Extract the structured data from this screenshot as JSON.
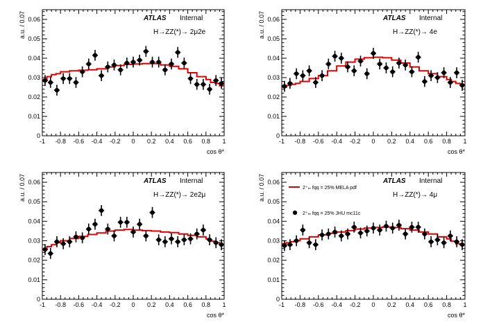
{
  "atlas_label": "ATLAS",
  "status_label": "Internal",
  "y_axis_label": "a.u. / 0.07",
  "x_axis_label": "cos θ*",
  "colors": {
    "model": "#e00000",
    "data": "#000000"
  },
  "legend": {
    "model_label": "2⁺ₘ fqq = 25% MELA pdf",
    "data_label": "2⁺ₘ fqq = 25% JHU mc11c"
  },
  "chart_data": [
    {
      "type": "scatter",
      "channel": "H→ZZ(*)→ 2μ2e",
      "xlim": [
        -1,
        1
      ],
      "ylim": [
        0,
        0.065
      ],
      "xticks": [
        "-1",
        "-0.8",
        "-0.6",
        "-0.4",
        "-0.2",
        "0",
        "0.2",
        "0.4",
        "0.6",
        "0.8",
        "1"
      ],
      "yticks": [
        "0",
        "0.01",
        "0.02",
        "0.03",
        "0.04",
        "0.05",
        "0.06"
      ],
      "points_x": [
        -0.97,
        -0.91,
        -0.84,
        -0.77,
        -0.7,
        -0.63,
        -0.56,
        -0.49,
        -0.42,
        -0.35,
        -0.28,
        -0.21,
        -0.14,
        -0.07,
        0.0,
        0.07,
        0.14,
        0.21,
        0.28,
        0.35,
        0.42,
        0.49,
        0.56,
        0.63,
        0.7,
        0.77,
        0.84,
        0.91,
        0.97
      ],
      "points_y": [
        0.0285,
        0.0275,
        0.0235,
        0.0295,
        0.0295,
        0.0275,
        0.033,
        0.037,
        0.0415,
        0.031,
        0.0355,
        0.0365,
        0.034,
        0.0375,
        0.038,
        0.039,
        0.0435,
        0.038,
        0.038,
        0.034,
        0.037,
        0.043,
        0.0375,
        0.0295,
        0.0265,
        0.0265,
        0.024,
        0.0285,
        0.027
      ],
      "errors_y": [
        0.0028,
        0.0028,
        0.0028,
        0.0028,
        0.0028,
        0.0028,
        0.0028,
        0.0028,
        0.0028,
        0.0028,
        0.0028,
        0.0028,
        0.0028,
        0.0028,
        0.0028,
        0.0028,
        0.0028,
        0.0028,
        0.0028,
        0.0028,
        0.0028,
        0.0028,
        0.0028,
        0.0028,
        0.0028,
        0.0028,
        0.0028,
        0.0028,
        0.0028
      ],
      "model_edges": [
        -1,
        -0.95,
        -0.9,
        -0.85,
        -0.8,
        -0.7,
        -0.6,
        -0.5,
        -0.4,
        -0.3,
        -0.2,
        -0.1,
        0.0,
        0.1,
        0.2,
        0.3,
        0.4,
        0.5,
        0.6,
        0.7,
        0.8,
        0.85,
        0.9,
        0.95,
        1.0
      ],
      "model_values": [
        0.029,
        0.0305,
        0.0315,
        0.032,
        0.033,
        0.0335,
        0.0338,
        0.034,
        0.0345,
        0.0355,
        0.0362,
        0.0368,
        0.037,
        0.0372,
        0.0372,
        0.0365,
        0.0358,
        0.0345,
        0.0325,
        0.0305,
        0.029,
        0.0275,
        0.027,
        0.0258
      ]
    },
    {
      "type": "scatter",
      "channel": "H→ZZ(*)→ 4e",
      "xlim": [
        -1,
        1
      ],
      "ylim": [
        0,
        0.065
      ],
      "xticks": [
        "-1",
        "-0.8",
        "-0.6",
        "-0.4",
        "-0.2",
        "0",
        "0.2",
        "0.4",
        "0.6",
        "0.8",
        "1"
      ],
      "yticks": [
        "0",
        "0.01",
        "0.02",
        "0.03",
        "0.04",
        "0.05",
        "0.06"
      ],
      "points_x": [
        -0.97,
        -0.91,
        -0.84,
        -0.77,
        -0.7,
        -0.63,
        -0.56,
        -0.49,
        -0.42,
        -0.35,
        -0.28,
        -0.21,
        -0.14,
        -0.07,
        0.0,
        0.07,
        0.14,
        0.21,
        0.28,
        0.35,
        0.42,
        0.49,
        0.56,
        0.63,
        0.7,
        0.77,
        0.84,
        0.91,
        0.97
      ],
      "points_y": [
        0.0255,
        0.027,
        0.032,
        0.031,
        0.0335,
        0.0275,
        0.031,
        0.037,
        0.041,
        0.04,
        0.0355,
        0.0335,
        0.0385,
        0.032,
        0.0425,
        0.037,
        0.035,
        0.033,
        0.0375,
        0.0365,
        0.033,
        0.0405,
        0.028,
        0.031,
        0.03,
        0.0325,
        0.0275,
        0.0325,
        0.026
      ],
      "errors_y": [
        0.0028,
        0.0028,
        0.0028,
        0.0028,
        0.0028,
        0.0028,
        0.0028,
        0.0028,
        0.0028,
        0.0028,
        0.0028,
        0.0028,
        0.0028,
        0.0028,
        0.0028,
        0.0028,
        0.0028,
        0.0028,
        0.0028,
        0.0028,
        0.0028,
        0.0028,
        0.0028,
        0.0028,
        0.0028,
        0.0028,
        0.0028,
        0.0028,
        0.0028
      ],
      "model_edges": [
        -1,
        -0.95,
        -0.9,
        -0.85,
        -0.8,
        -0.7,
        -0.6,
        -0.5,
        -0.4,
        -0.3,
        -0.2,
        -0.1,
        0.0,
        0.1,
        0.2,
        0.3,
        0.4,
        0.5,
        0.6,
        0.7,
        0.8,
        0.85,
        0.9,
        0.95,
        1.0
      ],
      "model_values": [
        0.025,
        0.026,
        0.0265,
        0.027,
        0.028,
        0.0295,
        0.031,
        0.0335,
        0.036,
        0.038,
        0.0395,
        0.0402,
        0.0405,
        0.0402,
        0.039,
        0.0375,
        0.0355,
        0.0335,
        0.032,
        0.0305,
        0.029,
        0.028,
        0.027,
        0.0265
      ]
    },
    {
      "type": "scatter",
      "channel": "H→ZZ(*)→ 2e2μ",
      "xlim": [
        -1,
        1
      ],
      "ylim": [
        0,
        0.065
      ],
      "xticks": [
        "-1",
        "-0.8",
        "-0.6",
        "-0.4",
        "-0.2",
        "0",
        "0.2",
        "0.4",
        "0.6",
        "0.8",
        "1"
      ],
      "yticks": [
        "0",
        "0.01",
        "0.02",
        "0.03",
        "0.04",
        "0.05",
        "0.06"
      ],
      "points_x": [
        -0.97,
        -0.91,
        -0.84,
        -0.77,
        -0.7,
        -0.63,
        -0.56,
        -0.49,
        -0.42,
        -0.35,
        -0.28,
        -0.21,
        -0.14,
        -0.07,
        0.0,
        0.07,
        0.14,
        0.21,
        0.28,
        0.35,
        0.42,
        0.49,
        0.56,
        0.63,
        0.7,
        0.77,
        0.84,
        0.91,
        0.97
      ],
      "points_y": [
        0.0255,
        0.0235,
        0.0295,
        0.0285,
        0.0295,
        0.032,
        0.0315,
        0.036,
        0.0385,
        0.0455,
        0.036,
        0.0325,
        0.0395,
        0.0395,
        0.0345,
        0.0385,
        0.0325,
        0.0445,
        0.0305,
        0.0295,
        0.031,
        0.0295,
        0.0305,
        0.031,
        0.0335,
        0.0355,
        0.0305,
        0.029,
        0.028
      ],
      "errors_y": [
        0.0028,
        0.0028,
        0.0028,
        0.0028,
        0.0028,
        0.0028,
        0.0028,
        0.0028,
        0.0028,
        0.0028,
        0.0028,
        0.0028,
        0.0028,
        0.0028,
        0.0028,
        0.0028,
        0.0028,
        0.0028,
        0.0028,
        0.0028,
        0.0028,
        0.0028,
        0.0028,
        0.0028,
        0.0028,
        0.0028,
        0.0028,
        0.0028,
        0.0028
      ],
      "model_edges": [
        -1,
        -0.95,
        -0.9,
        -0.85,
        -0.8,
        -0.7,
        -0.6,
        -0.5,
        -0.4,
        -0.3,
        -0.2,
        -0.1,
        0.0,
        0.1,
        0.2,
        0.3,
        0.4,
        0.5,
        0.6,
        0.7,
        0.8,
        0.85,
        0.9,
        0.95,
        1.0
      ],
      "model_values": [
        0.026,
        0.027,
        0.028,
        0.029,
        0.03,
        0.0312,
        0.0322,
        0.0332,
        0.034,
        0.035,
        0.0355,
        0.0358,
        0.0355,
        0.0352,
        0.035,
        0.0345,
        0.0342,
        0.0335,
        0.0328,
        0.032,
        0.031,
        0.0298,
        0.029,
        0.0282
      ]
    },
    {
      "type": "scatter",
      "channel": "H→ZZ(*)→ 4μ",
      "xlim": [
        -1,
        1
      ],
      "ylim": [
        0,
        0.065
      ],
      "xticks": [
        "-1",
        "-0.8",
        "-0.6",
        "-0.4",
        "-0.2",
        "0",
        "0.2",
        "0.4",
        "0.6",
        "0.8",
        "1"
      ],
      "yticks": [
        "0",
        "0.01",
        "0.02",
        "0.03",
        "0.04",
        "0.05",
        "0.06"
      ],
      "points_x": [
        -0.97,
        -0.91,
        -0.84,
        -0.77,
        -0.7,
        -0.63,
        -0.56,
        -0.49,
        -0.42,
        -0.35,
        -0.28,
        -0.21,
        -0.14,
        -0.07,
        0.0,
        0.07,
        0.14,
        0.21,
        0.28,
        0.35,
        0.42,
        0.49,
        0.56,
        0.63,
        0.7,
        0.77,
        0.84,
        0.91,
        0.97
      ],
      "points_y": [
        0.0275,
        0.028,
        0.03,
        0.0355,
        0.029,
        0.028,
        0.033,
        0.0335,
        0.0345,
        0.0325,
        0.0335,
        0.037,
        0.034,
        0.035,
        0.0365,
        0.0355,
        0.0375,
        0.0365,
        0.038,
        0.0335,
        0.037,
        0.037,
        0.0335,
        0.0295,
        0.0305,
        0.029,
        0.0325,
        0.0295,
        0.028
      ],
      "errors_y": [
        0.0028,
        0.0028,
        0.0028,
        0.0028,
        0.0028,
        0.0028,
        0.0028,
        0.0028,
        0.0028,
        0.0028,
        0.0028,
        0.0028,
        0.0028,
        0.0028,
        0.0028,
        0.0028,
        0.0028,
        0.0028,
        0.0028,
        0.0028,
        0.0028,
        0.0028,
        0.0028,
        0.0028,
        0.0028,
        0.0028,
        0.0028,
        0.0028,
        0.0028
      ],
      "model_edges": [
        -1,
        -0.95,
        -0.9,
        -0.85,
        -0.8,
        -0.7,
        -0.6,
        -0.5,
        -0.4,
        -0.3,
        -0.2,
        -0.1,
        0.0,
        0.1,
        0.2,
        0.3,
        0.4,
        0.5,
        0.6,
        0.7,
        0.8,
        0.85,
        0.9,
        0.95,
        1.0
      ],
      "model_values": [
        0.0285,
        0.029,
        0.0295,
        0.03,
        0.031,
        0.032,
        0.033,
        0.0338,
        0.0345,
        0.0352,
        0.036,
        0.0365,
        0.0368,
        0.037,
        0.0368,
        0.0362,
        0.0355,
        0.0345,
        0.0335,
        0.032,
        0.031,
        0.0298,
        0.0285,
        0.028
      ]
    }
  ]
}
